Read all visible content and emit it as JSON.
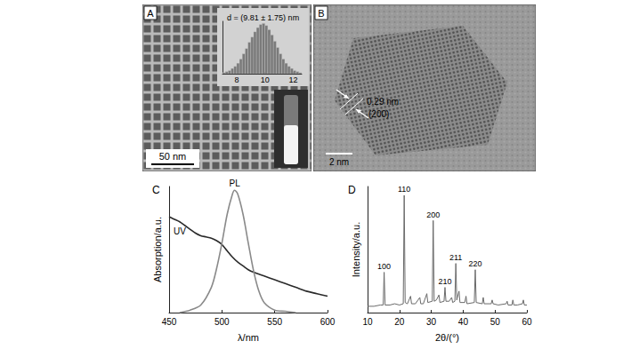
{
  "images": [
    {
      "panel": "A",
      "scale_bar": "50 nm"
    },
    {
      "panel": "B",
      "scale_bar": "2 nm",
      "annotations": [
        "0.29 nm",
        "(200)"
      ]
    }
  ],
  "chart_data": [
    {
      "type": "histogram",
      "title": "d = (9.81 ± 1.75) nm",
      "bins": [
        7.0,
        7.2,
        7.4,
        7.6,
        7.8,
        8.0,
        8.2,
        8.4,
        8.6,
        8.8,
        9.0,
        9.2,
        9.4,
        9.6,
        9.8,
        10.0,
        10.2,
        10.4,
        10.6,
        10.8,
        11.0,
        11.2,
        11.4,
        11.6,
        11.8,
        12.0,
        12.2,
        12.4,
        12.6
      ],
      "values": [
        1,
        2,
        3,
        5,
        7,
        10,
        14,
        19,
        24,
        30,
        35,
        40,
        44,
        47,
        48,
        46,
        42,
        37,
        31,
        25,
        19,
        14,
        10,
        7,
        5,
        3,
        2,
        1
      ],
      "color": "#7a7a7a",
      "xlim": [
        7.0,
        12.6
      ],
      "xticks": [
        8,
        10,
        12
      ],
      "ylim": [
        0,
        50
      ],
      "tick_labels": "x"
    },
    {
      "type": "line",
      "title": "C",
      "xlabel": "λ/nm",
      "ylabel": "Absorption/a.u.",
      "series": [
        {
          "name": "UV",
          "color": "#2a2a2a",
          "x": [
            450,
            455,
            460,
            465,
            470,
            475,
            480,
            485,
            490,
            495,
            500,
            505,
            510,
            515,
            520,
            525,
            530,
            540,
            550,
            560,
            570,
            580,
            590,
            600
          ],
          "values": [
            0.76,
            0.74,
            0.72,
            0.69,
            0.66,
            0.63,
            0.61,
            0.6,
            0.59,
            0.57,
            0.54,
            0.49,
            0.44,
            0.4,
            0.37,
            0.34,
            0.32,
            0.29,
            0.26,
            0.23,
            0.2,
            0.17,
            0.15,
            0.13
          ]
        },
        {
          "name": "PL",
          "color": "#8a8a8a",
          "x": [
            460,
            470,
            480,
            490,
            495,
            500,
            505,
            510,
            512,
            515,
            520,
            525,
            530,
            535,
            540,
            550,
            560,
            570
          ],
          "values": [
            0,
            0.02,
            0.06,
            0.2,
            0.35,
            0.55,
            0.78,
            0.94,
            0.97,
            0.94,
            0.78,
            0.55,
            0.33,
            0.17,
            0.08,
            0.02,
            0.01,
            0
          ]
        }
      ],
      "xlim": [
        450,
        600
      ],
      "xticks": [
        450,
        500,
        550,
        600
      ],
      "ylim": [
        0,
        1
      ],
      "tick_labels": "x"
    },
    {
      "type": "line",
      "title": "D",
      "xlabel": "2θ/(°)",
      "ylabel": "Intensity/a.u.",
      "color": "#6a6a6a",
      "x": [
        10,
        12,
        14,
        14.9,
        15.2,
        15.5,
        17,
        18.5,
        20,
        21.2,
        21.5,
        21.8,
        22.5,
        23.5,
        23.8,
        25,
        26.4,
        26.7,
        27.5,
        28.6,
        28.9,
        30.3,
        30.6,
        30.9,
        31.6,
        32.4,
        32.7,
        34.0,
        34.3,
        34.6,
        35.6,
        36.4,
        36.7,
        37.4,
        37.7,
        38.0,
        38.7,
        39.0,
        40.5,
        40.9,
        41.2,
        43.5,
        43.8,
        44.1,
        46.0,
        46.3,
        46.6,
        48.8,
        49.1,
        49.4,
        51,
        53.5,
        53.8,
        54.1,
        55.3,
        55.6,
        55.9,
        57,
        58.6,
        58.9,
        59.2,
        60
      ],
      "values": [
        0.05,
        0.05,
        0.06,
        0.06,
        0.32,
        0.06,
        0.06,
        0.07,
        0.06,
        0.07,
        0.93,
        0.08,
        0.07,
        0.13,
        0.07,
        0.07,
        0.12,
        0.07,
        0.07,
        0.15,
        0.08,
        0.09,
        0.73,
        0.09,
        0.1,
        0.14,
        0.08,
        0.09,
        0.2,
        0.09,
        0.09,
        0.12,
        0.08,
        0.09,
        0.39,
        0.1,
        0.17,
        0.08,
        0.08,
        0.13,
        0.07,
        0.08,
        0.34,
        0.08,
        0.07,
        0.12,
        0.07,
        0.07,
        0.1,
        0.07,
        0.06,
        0.07,
        0.09,
        0.06,
        0.06,
        0.1,
        0.06,
        0.06,
        0.07,
        0.1,
        0.06,
        0.06
      ],
      "annotations": [
        {
          "text": "100",
          "x": 15.2
        },
        {
          "text": "110",
          "x": 21.5
        },
        {
          "text": "200",
          "x": 30.6
        },
        {
          "text": "210",
          "x": 34.3
        },
        {
          "text": "211",
          "x": 37.7
        },
        {
          "text": "220",
          "x": 43.8
        }
      ],
      "xlim": [
        10,
        60
      ],
      "xticks": [
        10,
        20,
        30,
        40,
        50,
        60
      ],
      "ylim": [
        0,
        1
      ],
      "tick_labels": "x"
    }
  ]
}
